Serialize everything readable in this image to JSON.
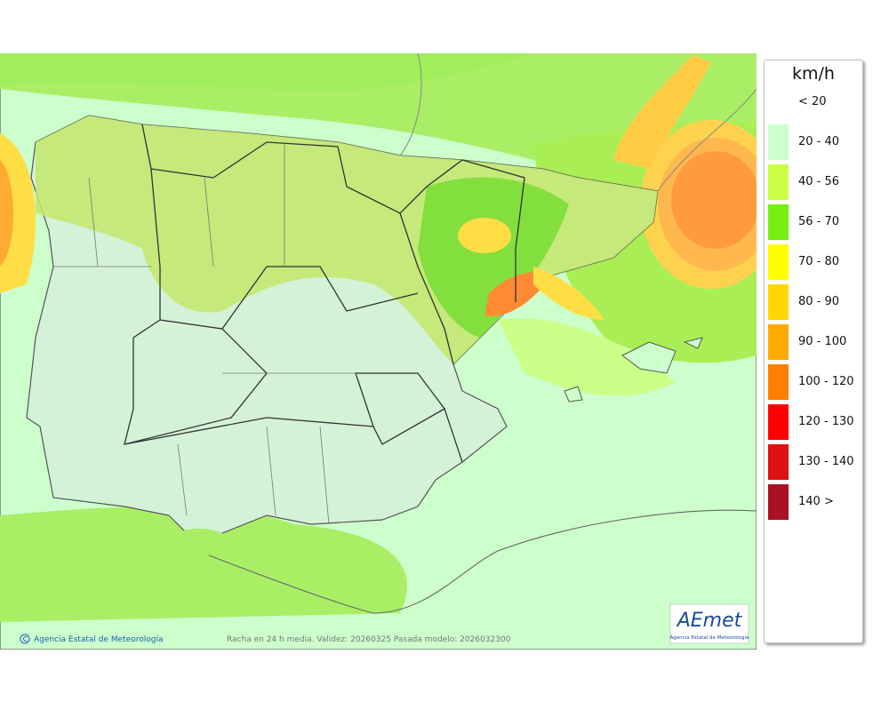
{
  "legend": {
    "unit": "km/h",
    "items": [
      {
        "label": "< 20",
        "color": "#ffffff"
      },
      {
        "label": "20 - 40",
        "color": "#ccffcc"
      },
      {
        "label": "40 - 56",
        "color": "#ccff44"
      },
      {
        "label": "56 - 70",
        "color": "#77ee11"
      },
      {
        "label": "70 - 80",
        "color": "#ffff00"
      },
      {
        "label": "80 - 90",
        "color": "#ffd700"
      },
      {
        "label": "90 - 100",
        "color": "#ffaa00"
      },
      {
        "label": "100 - 120",
        "color": "#ff8000"
      },
      {
        "label": "120 - 130",
        "color": "#ff0000"
      },
      {
        "label": "130 - 140",
        "color": "#dd1111"
      },
      {
        "label": "140 >",
        "color": "#aa1122"
      }
    ]
  },
  "footer": {
    "copyright": "Agencia Estatal de Meteorología",
    "caption": "Racha en 24 h media. Validez: 20260325 Pasada modelo: 2026032300"
  },
  "logo": {
    "text": "AEmet",
    "subtitle": "Agencia Estatal de Meteorología"
  }
}
